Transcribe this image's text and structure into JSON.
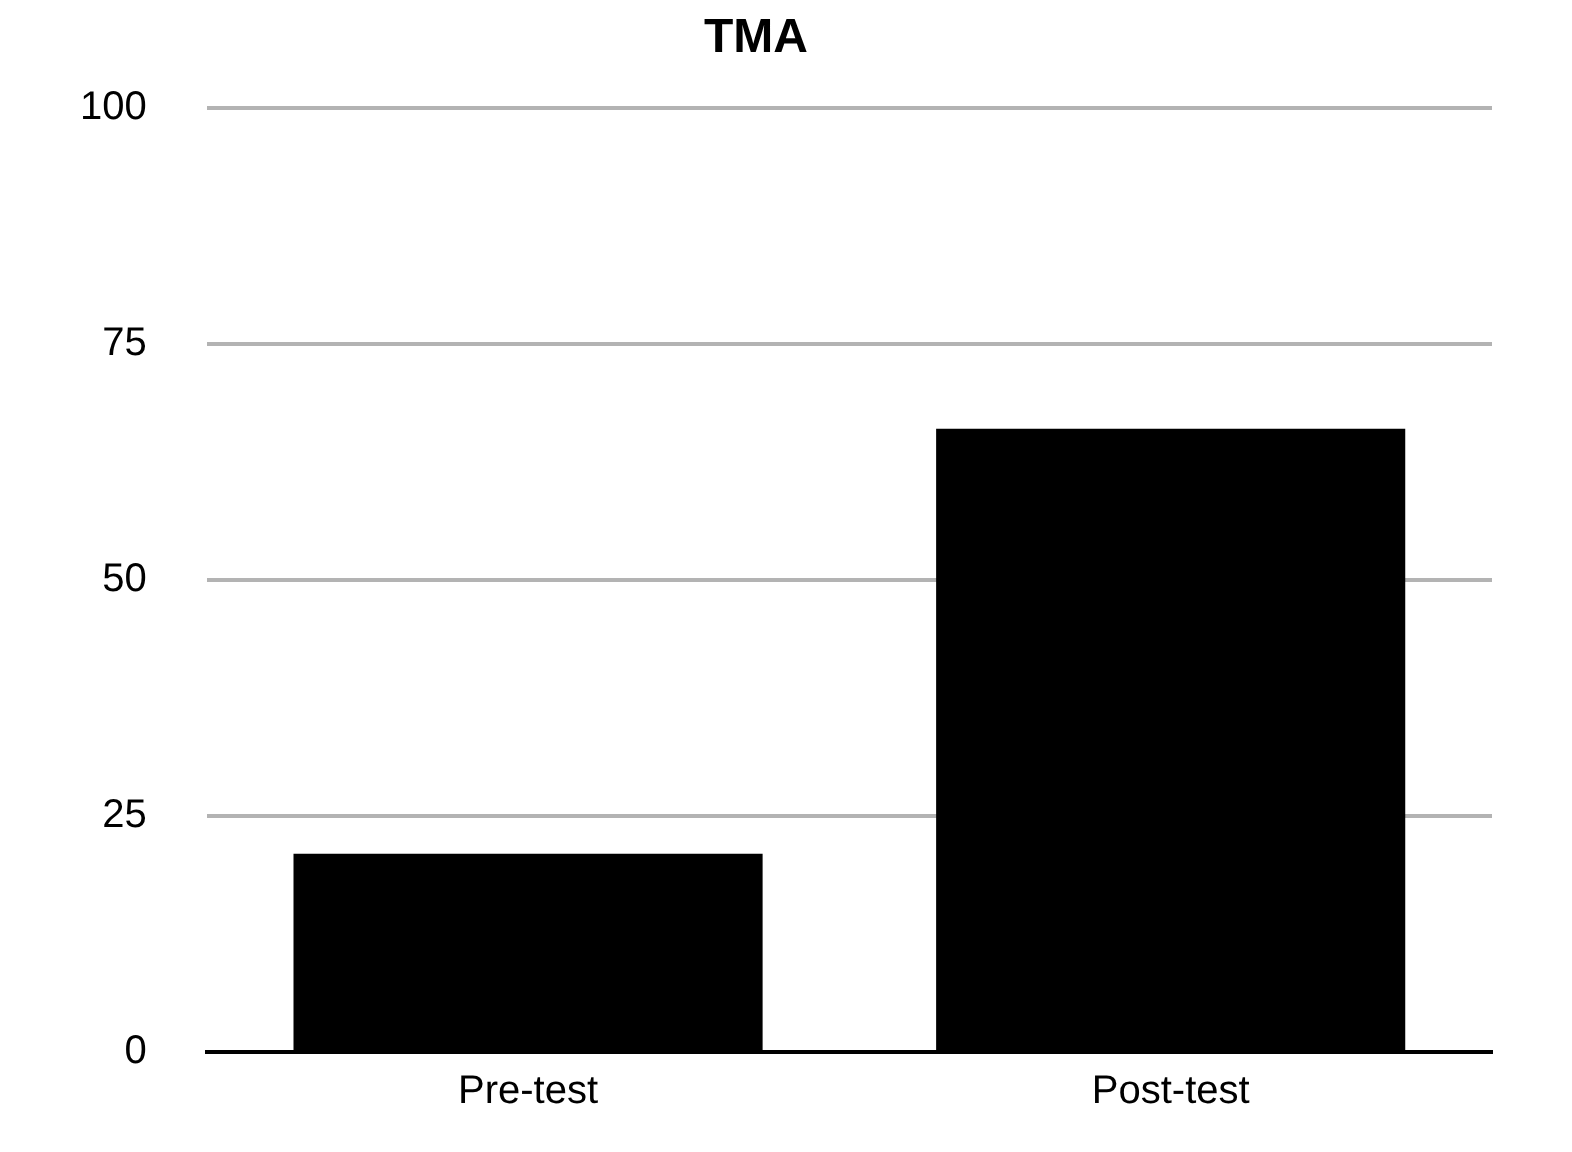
{
  "chart_data": {
    "type": "bar",
    "title": "TMA",
    "categories": [
      "Pre-test",
      "Post-test"
    ],
    "values": [
      21,
      66
    ],
    "color": "#000000",
    "ylim": [
      0,
      100
    ],
    "yticks": [
      0,
      25,
      50,
      75,
      100
    ],
    "grid": "y",
    "legend": false
  }
}
